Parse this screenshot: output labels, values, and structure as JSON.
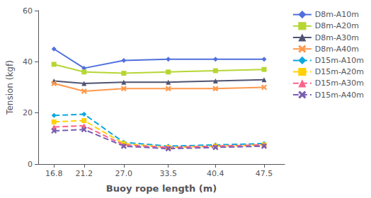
{
  "chart_data": {
    "type": "line",
    "xlabel": "Buoy rope length (m)",
    "ylabel": "Tension (kgf)",
    "x": [
      16.8,
      21.2,
      27.0,
      33.5,
      40.4,
      47.5
    ],
    "xlim": [
      14.5,
      50.5
    ],
    "xticks": [
      16.8,
      21.2,
      {
        "value": 27.0,
        "label": "27.0"
      },
      33.5,
      40.4,
      47.5
    ],
    "ylim": [
      0,
      60
    ],
    "yticks": [
      0,
      20,
      40,
      60
    ],
    "grid": false,
    "legend": "upper right",
    "series": [
      {
        "name": "D8m-A10m",
        "values": [
          45.0,
          37.5,
          40.5,
          41.0,
          41.0,
          41.0
        ],
        "marker": "diamond",
        "line_style": "solid"
      },
      {
        "name": "D8m-A20m",
        "values": [
          39.0,
          36.0,
          35.5,
          36.0,
          36.5,
          37.0
        ],
        "marker": "square",
        "line_style": "solid"
      },
      {
        "name": "D8m-A30m",
        "values": [
          32.5,
          31.5,
          32.0,
          32.0,
          32.5,
          33.0
        ],
        "marker": "triangle",
        "line_style": "solid"
      },
      {
        "name": "D8m-A40m",
        "values": [
          31.5,
          28.5,
          29.5,
          29.5,
          29.5,
          30.0
        ],
        "marker": "x",
        "line_style": "solid"
      },
      {
        "name": "D15m-A10m",
        "values": [
          19.0,
          19.5,
          8.5,
          7.0,
          7.5,
          8.0
        ],
        "marker": "diamond",
        "line_style": "dashed"
      },
      {
        "name": "D15m-A20m",
        "values": [
          16.5,
          17.0,
          8.0,
          6.5,
          7.0,
          7.5
        ],
        "marker": "square",
        "line_style": "dashed"
      },
      {
        "name": "D15m-A30m",
        "values": [
          14.5,
          15.0,
          7.5,
          6.5,
          7.0,
          7.5
        ],
        "marker": "triangle",
        "line_style": "dashed"
      },
      {
        "name": "D15m-A40m",
        "values": [
          13.0,
          13.5,
          7.0,
          6.0,
          6.5,
          7.0
        ],
        "marker": "x",
        "line_style": "dashed"
      }
    ]
  }
}
